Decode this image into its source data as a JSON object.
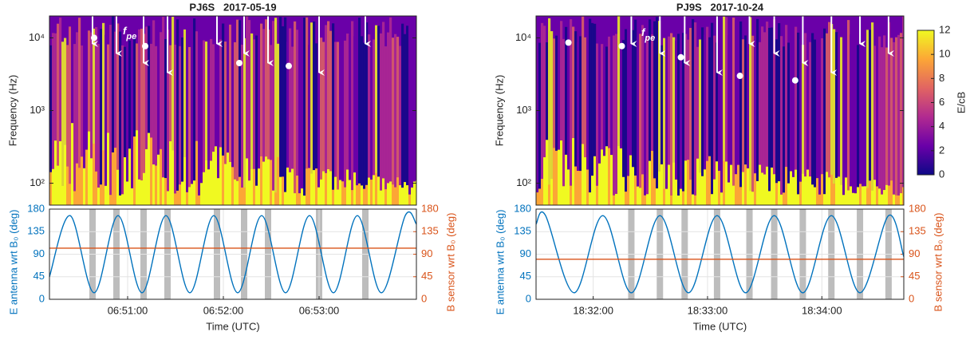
{
  "chart_data": [
    {
      "type": "spectrogram",
      "title": "PJ6S   2017-05-19",
      "ylabel": "Frequency (Hz)",
      "yscale": "log",
      "ylim": [
        50,
        20000
      ],
      "yticks": [
        {
          "value": 100,
          "label": "10²"
        },
        {
          "value": 1000,
          "label": "10³"
        },
        {
          "value": 10000,
          "label": "10⁴"
        }
      ],
      "xlim": [
        24611,
        24841
      ],
      "arrows": [
        24638,
        24653,
        24670,
        24685,
        24716,
        24733,
        24748,
        24780,
        24809
      ],
      "points": {
        "x": [
          24639,
          24671,
          24730,
          24761
        ],
        "y": [
          10000,
          7700,
          4500,
          4100
        ]
      },
      "annotation": {
        "text": "f",
        "subscript": "pe"
      }
    },
    {
      "type": "line",
      "xlabel": "Time (UTC)",
      "ylabel": "E antenna wrt B₀ (deg)",
      "y2label": "B sensor wrt B₀ (deg)",
      "xlim": [
        24611,
        24841
      ],
      "xticks": [
        {
          "value": 24660,
          "label": "06:51:00"
        },
        {
          "value": 24720,
          "label": "06:52:00"
        },
        {
          "value": 24780,
          "label": "06:53:00"
        }
      ],
      "ylim": [
        0,
        180
      ],
      "yticks": [
        0,
        45,
        90,
        135,
        180
      ],
      "y2lim": [
        0,
        180
      ],
      "y2ticks": [
        0,
        45,
        90,
        135,
        180
      ],
      "grid": true,
      "shaded": [
        24638,
        24653,
        24670,
        24685,
        24716,
        24733,
        24748,
        24780,
        24809
      ],
      "series": [
        {
          "color": "#0072bd",
          "x": [
            24611,
            24624,
            24639,
            24654,
            24669,
            24684,
            24699,
            24714,
            24729,
            24744,
            24759,
            24774,
            24789,
            24804,
            24819,
            24834,
            24841
          ],
          "values": [
            45,
            167,
            13,
            167,
            13,
            167,
            13,
            167,
            13,
            167,
            13,
            167,
            13,
            167,
            13,
            167,
            150
          ]
        },
        {
          "color": "#d95319",
          "axis": "y2",
          "x": [
            24611,
            24841
          ],
          "values": [
            102,
            102
          ]
        }
      ]
    },
    {
      "type": "spectrogram",
      "title": "PJ9S   2017-10-24",
      "ylabel": "Frequency (Hz)",
      "yscale": "log",
      "ylim": [
        50,
        20000
      ],
      "yticks": [
        {
          "value": 100,
          "label": "10²"
        },
        {
          "value": 1000,
          "label": "10³"
        },
        {
          "value": 10000,
          "label": "10⁴"
        }
      ],
      "xlim": [
        66690,
        66883
      ],
      "arrows": [
        66740,
        66755,
        66768,
        66785,
        66802,
        66815,
        66830,
        66845,
        66860,
        66875
      ],
      "points": {
        "x": [
          66707,
          66735,
          66766,
          66797,
          66826
        ],
        "y": [
          8600,
          7700,
          5400,
          3000,
          2600
        ]
      },
      "annotation": {
        "text": "f",
        "subscript": "pe"
      },
      "colorbar": {
        "label": "E/cB",
        "lim": [
          0,
          12
        ],
        "ticks": [
          0,
          2,
          4,
          6,
          8,
          10,
          12
        ],
        "colors": [
          "#0d0887",
          "#6a00a8",
          "#b12a90",
          "#e16462",
          "#fca636",
          "#f0f921"
        ]
      }
    },
    {
      "type": "line",
      "xlabel": "Time (UTC)",
      "ylabel": "E antenna wrt B₀ (deg)",
      "y2label": "B sensor wrt B₀ (deg)",
      "xlim": [
        66690,
        66883
      ],
      "xticks": [
        {
          "value": 66720,
          "label": "18:32:00"
        },
        {
          "value": 66780,
          "label": "18:33:00"
        },
        {
          "value": 66840,
          "label": "18:34:00"
        }
      ],
      "ylim": [
        0,
        180
      ],
      "yticks": [
        0,
        45,
        90,
        135,
        180
      ],
      "y2lim": [
        0,
        180
      ],
      "y2ticks": [
        0,
        45,
        90,
        135,
        180
      ],
      "grid": true,
      "shaded": [
        66740,
        66755,
        66768,
        66785,
        66802,
        66815,
        66830,
        66845,
        66860,
        66875
      ],
      "series": [
        {
          "color": "#0072bd",
          "x": [
            66690,
            66695,
            66710,
            66725,
            66740,
            66755,
            66770,
            66785,
            66800,
            66815,
            66830,
            66845,
            66860,
            66875,
            66883
          ],
          "values": [
            150,
            167,
            13,
            167,
            13,
            167,
            13,
            167,
            13,
            167,
            13,
            167,
            13,
            167,
            85
          ]
        },
        {
          "color": "#d95319",
          "axis": "y2",
          "x": [
            66690,
            66883
          ],
          "values": [
            80,
            80
          ]
        }
      ]
    }
  ]
}
